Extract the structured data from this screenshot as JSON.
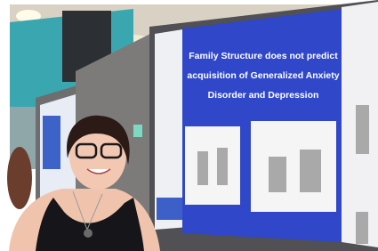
{
  "poster": {
    "headline_lines": [
      "Family Structure does not predict",
      "acquisition of Generalized Anxiety",
      "Disorder and Depression"
    ]
  }
}
